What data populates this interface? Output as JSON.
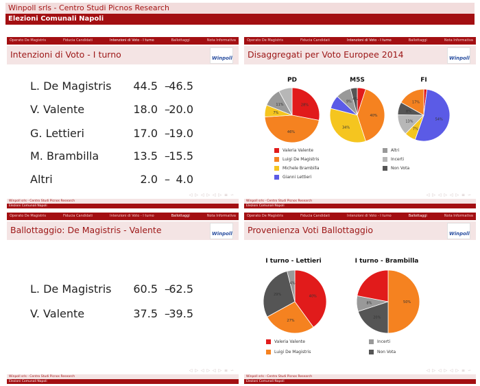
{
  "header": {
    "title": "Winpoll srls - Centro Studi Picnos Research",
    "subtitle": "Elezioni Comunali Napoli"
  },
  "nav": [
    "Operato De Magistris",
    "Fiducia Candidati",
    "Intenzioni di Voto - I turno",
    "Ballottaggi",
    "Nota Informativa"
  ],
  "footer": {
    "line1": "Winpoll srls - Centro Studi Picnos Research",
    "line2": "Elezioni Comunali Napoli"
  },
  "logo_text": "Winpoll",
  "colors": {
    "red": "#e11b1b",
    "orange": "#f58220",
    "yellow": "#f5c51f",
    "blue": "#5b5be6",
    "lightgray": "#b7b7b7",
    "gray": "#999999",
    "dark": "#555555"
  },
  "slide1": {
    "title": "Intenzioni di Voto - I turno",
    "rows": [
      {
        "name": "L. De Magistris",
        "low": "44.5",
        "high": "46.5"
      },
      {
        "name": "V. Valente",
        "low": "18.0",
        "high": "20.0"
      },
      {
        "name": "G. Lettieri",
        "low": "17.0",
        "high": "19.0"
      },
      {
        "name": "M. Brambilla",
        "low": "13.5",
        "high": "15.5"
      },
      {
        "name": "Altri",
        "low": "2.0",
        "high": "4.0"
      }
    ]
  },
  "slide2": {
    "title": "Disaggregati per Voto Europee 2014",
    "legend": [
      {
        "label": "Valeria Valente",
        "color": "#e11b1b"
      },
      {
        "label": "Luigi De Magistris",
        "color": "#f58220"
      },
      {
        "label": "Michele Brambilla",
        "color": "#f5c51f"
      },
      {
        "label": "Gianni Lettieri",
        "color": "#5b5be6"
      },
      {
        "label": "Altri",
        "color": "#999999"
      },
      {
        "label": "Incerti",
        "color": "#b7b7b7"
      },
      {
        "label": "Non Vota",
        "color": "#555555"
      }
    ]
  },
  "slide3": {
    "title": "Ballottaggio: De Magistris - Valente",
    "rows": [
      {
        "name": "L. De Magistris",
        "low": "60.5",
        "high": "62.5"
      },
      {
        "name": "V. Valente",
        "low": "37.5",
        "high": "39.5"
      }
    ]
  },
  "slide4": {
    "title": "Provenienza Voti Ballottaggio",
    "legend": [
      {
        "label": "Valeria Valente",
        "color": "#e11b1b"
      },
      {
        "label": "Luigi De Magistris",
        "color": "#f58220"
      },
      {
        "label": "Incerti",
        "color": "#999999"
      },
      {
        "label": "Non Vota",
        "color": "#555555"
      }
    ]
  },
  "chart_data": [
    {
      "type": "pie",
      "title": "PD",
      "labels": [
        "Valeria Valente",
        "Luigi De Magistris",
        "Michele Brambilla",
        "Altri",
        "Incerti"
      ],
      "values": [
        28,
        46,
        7,
        11,
        8
      ],
      "value_labels": [
        "28%",
        "46%",
        "7%",
        "11%",
        ""
      ]
    },
    {
      "type": "pie",
      "title": "M5S",
      "labels": [
        "Valeria Valente",
        "Luigi De Magistris",
        "Michele Brambilla",
        "Gianni Lettieri",
        "Altri",
        "Non Vota"
      ],
      "values": [
        5,
        40,
        34,
        8,
        9,
        4
      ],
      "value_labels": [
        "",
        "40%",
        "34%",
        "",
        "9%",
        "4%"
      ]
    },
    {
      "type": "pie",
      "title": "FI",
      "labels": [
        "Valeria Valente",
        "Gianni Lettieri",
        "Michele Brambilla",
        "Incerti",
        "Non Vota",
        "Luigi De Magistris"
      ],
      "values": [
        2,
        54,
        7,
        13,
        8,
        17
      ],
      "value_labels": [
        "",
        "54%",
        "7%",
        "13%",
        "8%",
        "17%"
      ]
    },
    {
      "type": "pie",
      "title": "I turno - Lettieri",
      "labels": [
        "Valeria Valente",
        "Luigi De Magistris",
        "Non Vota",
        "Incerti"
      ],
      "values": [
        40,
        27,
        29,
        4
      ],
      "value_labels": [
        "40%",
        "27%",
        "29%",
        "4%"
      ]
    },
    {
      "type": "pie",
      "title": "I turno - Brambilla",
      "labels": [
        "Luigi De Magistris",
        "Non Vota",
        "Incerti",
        "Valeria Valente"
      ],
      "values": [
        50,
        20,
        8,
        22
      ],
      "value_labels": [
        "50%",
        "20%",
        "8%",
        ""
      ]
    }
  ]
}
